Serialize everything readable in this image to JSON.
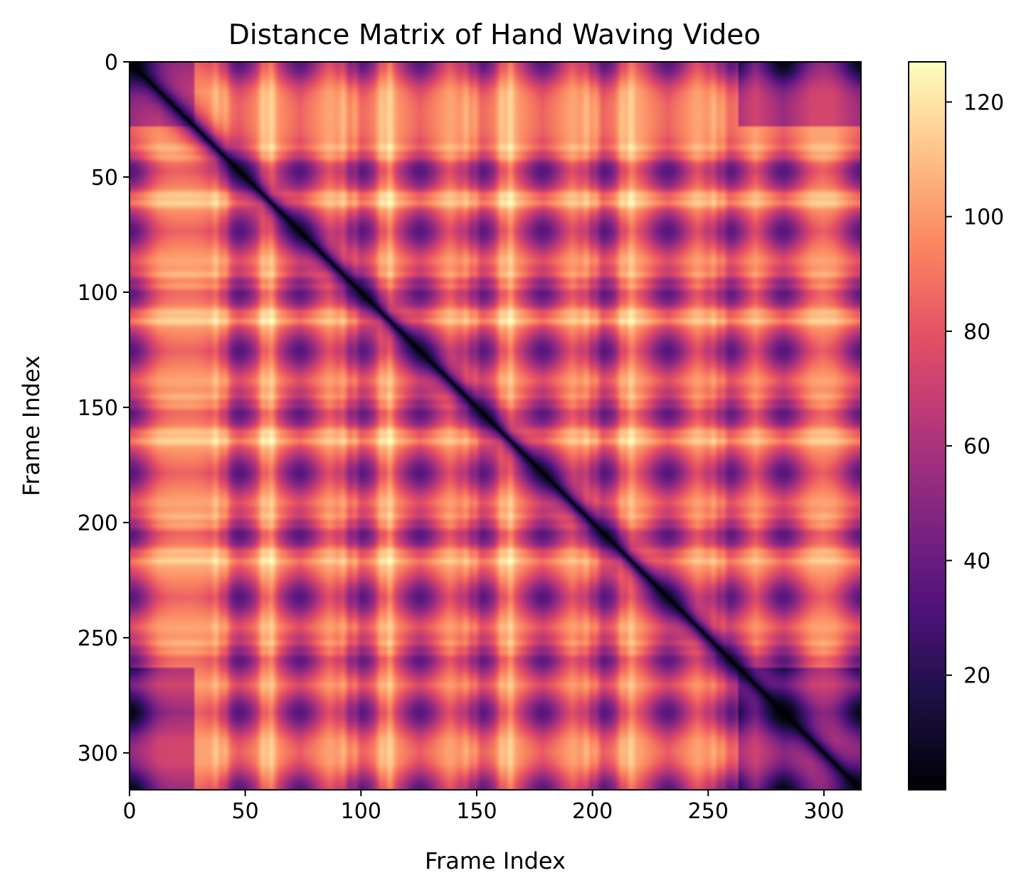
{
  "chart_data": {
    "type": "heatmap",
    "title": "Distance Matrix of Hand Waving Video",
    "xlabel": "Frame Index",
    "ylabel": "Frame Index",
    "n_frames": 316,
    "xlim": [
      0,
      316
    ],
    "ylim": [
      316,
      0
    ],
    "x_ticks": [
      0,
      50,
      100,
      150,
      200,
      250,
      300
    ],
    "y_ticks": [
      0,
      50,
      100,
      150,
      200,
      250,
      300
    ],
    "colormap": "magma",
    "colorbar": {
      "range": [
        0,
        127
      ],
      "ticks": [
        20,
        40,
        60,
        80,
        100,
        120
      ]
    },
    "low_distance_centers": [
      0,
      47,
      73,
      99,
      125,
      151,
      178,
      204,
      232,
      258,
      282,
      316
    ],
    "diagonal_value": 0,
    "typical_offdiagonal_value": 85,
    "peak_value": 127,
    "grid": false
  }
}
